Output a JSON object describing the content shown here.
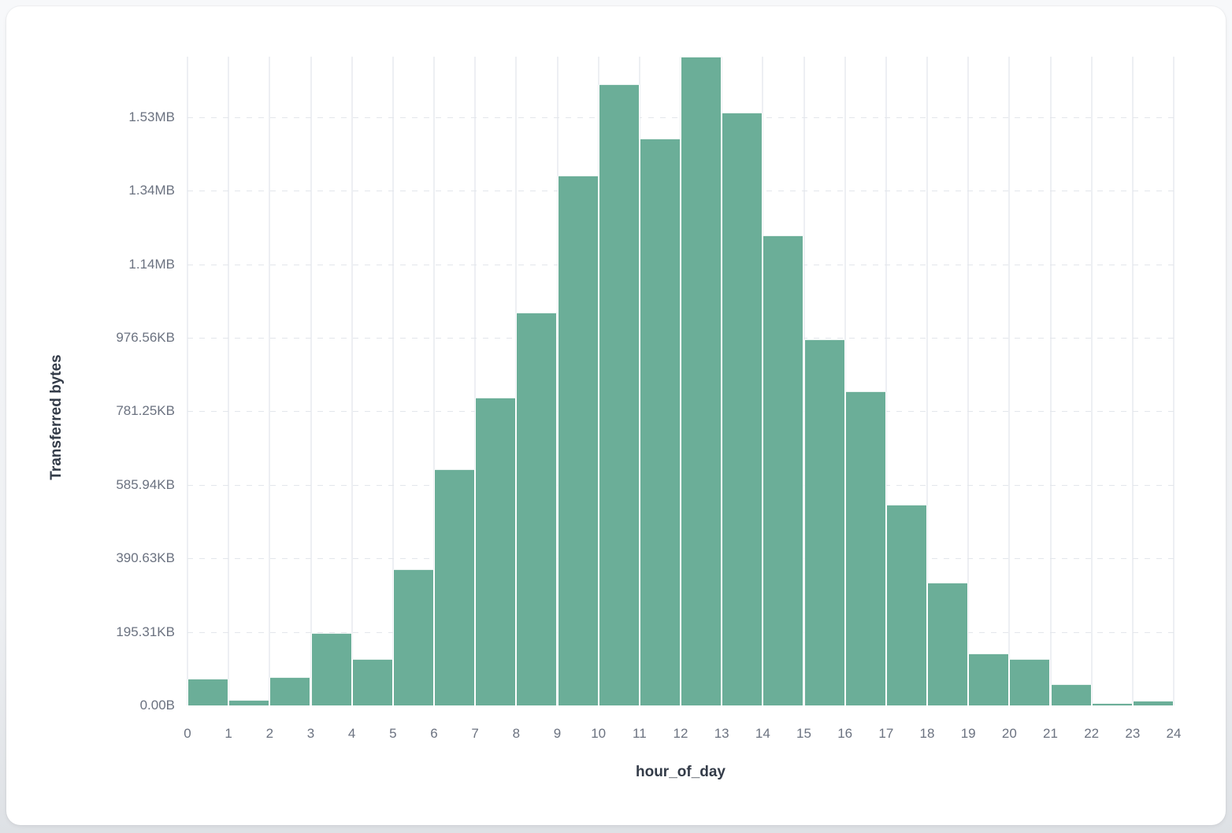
{
  "colors": {
    "bar": "#6bae98",
    "grid_vertical": "#edeff3",
    "grid_horizontal": "#e3e6eb",
    "tick_text": "#6b7280",
    "axis_title_text": "#333b48",
    "card_background": "#ffffff",
    "page_background": "#eef0f3"
  },
  "chart_data": {
    "type": "bar",
    "title": "",
    "xlabel": "hour_of_day",
    "ylabel": "Transferred bytes",
    "bin_edges": [
      0,
      1,
      2,
      3,
      4,
      5,
      6,
      7,
      8,
      9,
      10,
      11,
      12,
      13,
      14,
      15,
      16,
      17,
      18,
      19,
      20,
      21,
      22,
      23,
      24
    ],
    "x_tick_labels": [
      "0",
      "1",
      "2",
      "3",
      "4",
      "5",
      "6",
      "7",
      "8",
      "9",
      "10",
      "11",
      "12",
      "13",
      "14",
      "15",
      "16",
      "17",
      "18",
      "19",
      "20",
      "21",
      "22",
      "23",
      "24"
    ],
    "values_bytes": [
      73000,
      15600,
      78000,
      196500,
      127300,
      369700,
      641700,
      837600,
      1067500,
      1441600,
      1688800,
      1541300,
      1764200,
      1612500,
      1279100,
      994900,
      855300,
      546200,
      333300,
      141000,
      127400,
      58300,
      6400,
      12800
    ],
    "y_ticks": [
      {
        "value": 0,
        "label": "0.00B"
      },
      {
        "value": 200000,
        "label": "195.31KB"
      },
      {
        "value": 400000,
        "label": "390.63KB"
      },
      {
        "value": 600000,
        "label": "585.94KB"
      },
      {
        "value": 800000,
        "label": "781.25KB"
      },
      {
        "value": 1000000,
        "label": "976.56KB"
      },
      {
        "value": 1200000,
        "label": "1.14MB"
      },
      {
        "value": 1400000,
        "label": "1.34MB"
      },
      {
        "value": 1600000,
        "label": "1.53MB"
      }
    ],
    "xlim": [
      0,
      24
    ],
    "ylim": [
      0,
      1764200
    ],
    "grid": {
      "vertical": "solid",
      "horizontal": "dashed"
    },
    "legend": "none"
  }
}
